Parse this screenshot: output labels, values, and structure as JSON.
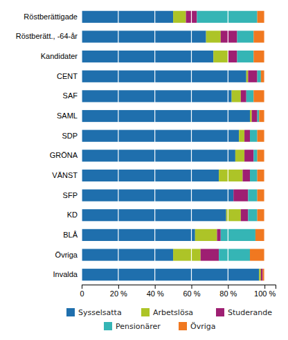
{
  "chart_data": {
    "type": "bar",
    "orientation": "horizontal",
    "stacked": true,
    "categories": [
      "Röstberättigade",
      "Röstberätt., -64-år",
      "Kandidater",
      "CENT",
      "SAF",
      "SAML",
      "SDP",
      "GRÖNA",
      "VÄNST",
      "SFP",
      "KD",
      "BLÅ",
      "Övriga",
      "Invalda"
    ],
    "series": [
      {
        "name": "Sysselsatta",
        "color": "#1f6fad",
        "values": [
          50,
          68,
          72,
          90,
          82,
          92,
          86,
          84,
          75,
          83,
          79,
          62,
          50,
          97
        ]
      },
      {
        "name": "Arbetslösa",
        "color": "#adc427",
        "values": [
          7,
          8,
          8,
          1,
          5,
          1,
          3,
          5,
          13,
          0,
          8,
          12,
          15,
          1
        ]
      },
      {
        "name": "Studerande",
        "color": "#9e1f72",
        "values": [
          6,
          9,
          5,
          5,
          3,
          3,
          3,
          5,
          4,
          8,
          4,
          2,
          10,
          1
        ]
      },
      {
        "name": "Pensionärer",
        "color": "#35b5b5",
        "values": [
          33,
          9,
          9,
          2,
          4,
          1,
          4,
          2,
          4,
          5,
          5,
          19,
          17,
          0
        ]
      },
      {
        "name": "Övriga",
        "color": "#f07820",
        "values": [
          4,
          6,
          6,
          2,
          6,
          3,
          4,
          4,
          4,
          4,
          4,
          5,
          8,
          1
        ]
      }
    ],
    "xlim": [
      0,
      106
    ],
    "xticks": [
      0,
      {
        "value": 20,
        "label": "20 %"
      },
      {
        "value": 40,
        "label": "40 %"
      },
      {
        "value": 60,
        "label": "60 %"
      },
      {
        "value": 80,
        "label": "80 %"
      },
      {
        "value": 100,
        "label": "100 %"
      }
    ],
    "grid": true,
    "legend": "bottom"
  }
}
